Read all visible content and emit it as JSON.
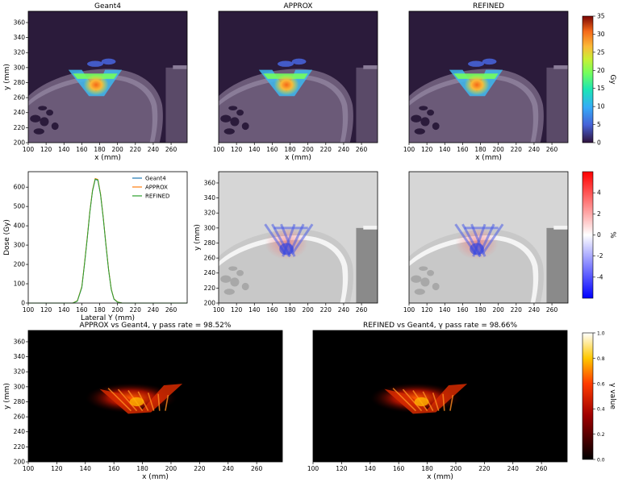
{
  "colors": {
    "ct_outside": "#2b1b3b",
    "ct_tissue": "#6b5a78",
    "ct_bone": "#8a7c98",
    "geant4_line": "#1f77b4",
    "approx_line": "#ff7f0e",
    "refined_line": "#2ca02c"
  },
  "chart_data": [
    {
      "id": "dose-geant4",
      "type": "heatmap",
      "title": "Geant4",
      "xlabel": "x (mm)",
      "ylabel": "y (mm)",
      "xticks": [
        "100",
        "120",
        "140",
        "160",
        "180",
        "200",
        "220",
        "240",
        "260"
      ],
      "yticks": [
        "200",
        "220",
        "240",
        "260",
        "280",
        "300",
        "320",
        "340",
        "360"
      ],
      "xlim": [
        100,
        278
      ],
      "ylim": [
        200,
        375
      ]
    },
    {
      "id": "dose-approx",
      "type": "heatmap",
      "title": "APPROX",
      "xlabel": "x (mm)",
      "xticks": [
        "100",
        "120",
        "140",
        "160",
        "180",
        "200",
        "220",
        "240",
        "260"
      ],
      "xlim": [
        100,
        278
      ],
      "ylim": [
        200,
        375
      ]
    },
    {
      "id": "dose-refined",
      "type": "heatmap",
      "title": "REFINED",
      "xlabel": "x (mm)",
      "xticks": [
        "100",
        "120",
        "140",
        "160",
        "180",
        "200",
        "220",
        "240",
        "260"
      ],
      "xlim": [
        100,
        278
      ],
      "ylim": [
        200,
        375
      ]
    },
    {
      "id": "dose-colorbar",
      "type": "heatmap",
      "label": "Gy",
      "ticks": [
        "0",
        "5",
        "10",
        "15",
        "20",
        "25",
        "30",
        "35"
      ],
      "range": [
        0,
        35
      ]
    },
    {
      "id": "lateral-profile",
      "type": "line",
      "xlabel": "Lateral Y (mm)",
      "ylabel": "Dose (Gy)",
      "xticks": [
        "100",
        "120",
        "140",
        "160",
        "180",
        "200",
        "220",
        "240",
        "260"
      ],
      "yticks": [
        "0",
        "100",
        "200",
        "300",
        "400",
        "500",
        "600"
      ],
      "xlim": [
        100,
        278
      ],
      "ylim": [
        0,
        680
      ],
      "x": [
        100,
        150,
        155,
        160,
        163,
        166,
        169,
        172,
        175,
        178,
        181,
        184,
        187,
        190,
        193,
        196,
        200,
        205,
        278
      ],
      "series": [
        {
          "name": "Geant4",
          "values": [
            0,
            0,
            10,
            80,
            200,
            330,
            470,
            580,
            640,
            635,
            560,
            440,
            300,
            170,
            70,
            20,
            5,
            0,
            0
          ]
        },
        {
          "name": "APPROX",
          "values": [
            0,
            0,
            12,
            85,
            205,
            335,
            475,
            585,
            645,
            640,
            565,
            445,
            305,
            175,
            72,
            22,
            6,
            0,
            0
          ]
        },
        {
          "name": "REFINED",
          "values": [
            0,
            0,
            11,
            82,
            202,
            332,
            472,
            582,
            642,
            637,
            562,
            442,
            302,
            172,
            71,
            21,
            5,
            0,
            0
          ]
        }
      ]
    },
    {
      "id": "diff-approx",
      "type": "heatmap",
      "ylabel": "y (mm)",
      "xticks": [
        "100",
        "120",
        "140",
        "160",
        "180",
        "200",
        "220",
        "240",
        "260"
      ],
      "yticks": [
        "200",
        "220",
        "240",
        "260",
        "280",
        "300",
        "320",
        "340",
        "360"
      ],
      "xlim": [
        100,
        278
      ],
      "ylim": [
        200,
        375
      ]
    },
    {
      "id": "diff-refined",
      "type": "heatmap",
      "xticks": [
        "100",
        "120",
        "140",
        "160",
        "180",
        "200",
        "220",
        "240",
        "260"
      ],
      "xlim": [
        100,
        278
      ],
      "ylim": [
        200,
        375
      ]
    },
    {
      "id": "diff-colorbar",
      "type": "heatmap",
      "label": "%",
      "ticks": [
        "-4",
        "-2",
        "0",
        "2",
        "4"
      ],
      "range": [
        -6,
        6
      ]
    },
    {
      "id": "gamma-approx",
      "type": "heatmap",
      "title": "APPROX vs Geant4, γ pass rate = 98.52%",
      "xlabel": "x (mm)",
      "ylabel": "y (mm)",
      "xticks": [
        "100",
        "120",
        "140",
        "160",
        "180",
        "200",
        "220",
        "240",
        "260"
      ],
      "yticks": [
        "200",
        "220",
        "240",
        "260",
        "280",
        "300",
        "320",
        "340",
        "360"
      ],
      "xlim": [
        100,
        278
      ],
      "ylim": [
        200,
        375
      ]
    },
    {
      "id": "gamma-refined",
      "type": "heatmap",
      "title": "REFINED vs Geant4, γ pass rate = 98.66%",
      "xlabel": "x (mm)",
      "xticks": [
        "100",
        "120",
        "140",
        "160",
        "180",
        "200",
        "220",
        "240",
        "260"
      ],
      "xlim": [
        100,
        278
      ],
      "ylim": [
        200,
        375
      ]
    },
    {
      "id": "gamma-colorbar",
      "type": "heatmap",
      "label": "γ value",
      "ticks": [
        "0.0",
        "0.2",
        "0.4",
        "0.6",
        "0.8",
        "1.0"
      ],
      "range": [
        0,
        1
      ]
    }
  ]
}
